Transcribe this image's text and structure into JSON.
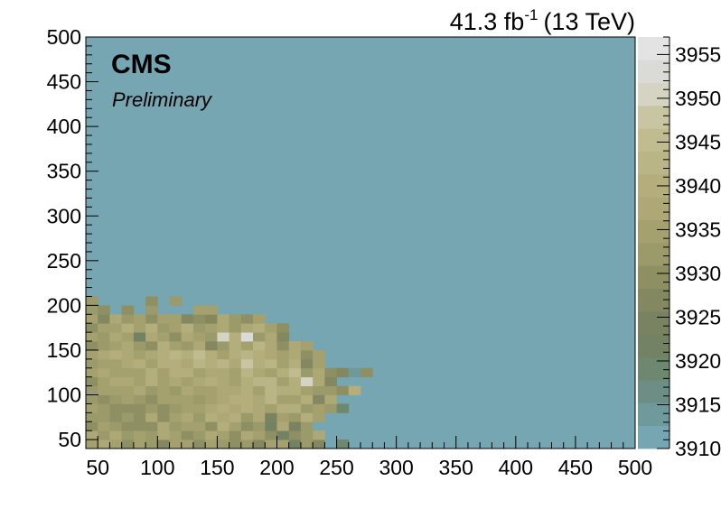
{
  "header": {
    "lumi_value": "41.3 fb",
    "lumi_exponent": "-1",
    "energy": "(13 TeV)"
  },
  "labels": {
    "experiment": "CMS",
    "status": "Preliminary"
  },
  "colors": {
    "background_bin": "#75a6b2",
    "palette": [
      "#75a6b2",
      "#6e9a9c",
      "#6c8e84",
      "#6e876f",
      "#738262",
      "#7a8361",
      "#838860",
      "#8e9064",
      "#9a9a6a",
      "#a5a16f",
      "#ada876",
      "#b4ae7d",
      "#bab586",
      "#c0bc90",
      "#c8c6a2",
      "#d5d4c2",
      "#dadad6",
      "#e3e3e3"
    ]
  },
  "chart_data": {
    "type": "heatmap",
    "title": "",
    "xlabel": "",
    "ylabel": "",
    "xlim": [
      40,
      500
    ],
    "ylim": [
      40,
      500
    ],
    "x_ticks": [
      50,
      100,
      150,
      200,
      250,
      300,
      350,
      400,
      450,
      500
    ],
    "y_ticks": [
      50,
      100,
      150,
      200,
      250,
      300,
      350,
      400,
      450,
      500
    ],
    "bin_width": 10,
    "z_range": [
      3910,
      3957
    ],
    "z_ticks": [
      3910,
      3915,
      3920,
      3925,
      3930,
      3935,
      3940,
      3945,
      3950,
      3955
    ],
    "z_tick_labels": [
      "3910",
      "3915",
      "3920",
      "3925",
      "3930",
      "3935",
      "3940",
      "3945",
      "3950",
      "3955"
    ],
    "empty_bin_value": 3910,
    "rows": [
      {
        "y": 40,
        "x_start": 40,
        "z": [
          3934,
          3938,
          3934,
          3929,
          3935,
          3932,
          3928,
          3936,
          3934,
          3929,
          3936,
          3931,
          3930,
          3932,
          3928,
          3934,
          3936,
          3921,
          3933,
          3928,
          3910,
          3920
        ]
      },
      {
        "y": 50,
        "x_start": 40,
        "z": [
          3937,
          3931,
          3938,
          3932,
          3935,
          3933,
          3937,
          3936,
          3929,
          3933,
          3937,
          3935,
          3930,
          3937,
          3936,
          3929,
          3922,
          3929,
          3933,
          3937
        ]
      },
      {
        "y": 60,
        "x_start": 40,
        "z": [
          3929,
          3934,
          3932,
          3930,
          3929,
          3930,
          3937,
          3931,
          3935,
          3934,
          3930,
          3939,
          3935,
          3929,
          3932,
          3921,
          3937,
          3925,
          3933
        ]
      },
      {
        "y": 70,
        "x_start": 40,
        "z": [
          3932,
          3933,
          3929,
          3932,
          3930,
          3938,
          3929,
          3934,
          3937,
          3932,
          3939,
          3937,
          3939,
          3932,
          3937,
          3925,
          3936,
          3932,
          3939,
          3934
        ]
      },
      {
        "y": 80,
        "x_start": 40,
        "z": [
          3936,
          3933,
          3930,
          3929,
          3930,
          3932,
          3929,
          3932,
          3935,
          3934,
          3938,
          3939,
          3937,
          3940,
          3937,
          3935,
          3941,
          3939,
          3933,
          3936,
          3931,
          3918
        ]
      },
      {
        "y": 90,
        "x_start": 40,
        "z": [
          3931,
          3929,
          3933,
          3935,
          3932,
          3930,
          3935,
          3936,
          3934,
          3933,
          3935,
          3938,
          3941,
          3939,
          3938,
          3942,
          3936,
          3935,
          3940,
          3928,
          3937
        ]
      },
      {
        "y": 100,
        "x_start": 40,
        "z": [
          3933,
          3936,
          3935,
          3934,
          3937,
          3932,
          3934,
          3933,
          3937,
          3936,
          3934,
          3938,
          3937,
          3939,
          3936,
          3942,
          3939,
          3940,
          3936,
          3933,
          3931,
          3929,
          3940
        ]
      },
      {
        "y": 110,
        "x_start": 40,
        "z": [
          3930,
          3934,
          3937,
          3938,
          3935,
          3939,
          3936,
          3937,
          3934,
          3937,
          3941,
          3938,
          3936,
          3940,
          3942,
          3943,
          3935,
          3939,
          3951,
          3938,
          3926
        ]
      },
      {
        "y": 120,
        "x_start": 40,
        "z": [
          3936,
          3937,
          3935,
          3934,
          3934,
          3939,
          3935,
          3940,
          3939,
          3936,
          3937,
          3938,
          3935,
          3942,
          3938,
          3936,
          3940,
          3944,
          3933,
          3937,
          3929,
          3926,
          3915,
          3930
        ]
      },
      {
        "y": 130,
        "x_start": 40,
        "z": [
          3931,
          3936,
          3934,
          3937,
          3939,
          3936,
          3940,
          3939,
          3937,
          3943,
          3939,
          3942,
          3938,
          3947,
          3941,
          3942,
          3935,
          3939,
          3928,
          3934
        ]
      },
      {
        "y": 140,
        "x_start": 40,
        "z": [
          3934,
          3937,
          3940,
          3938,
          3935,
          3937,
          3941,
          3943,
          3939,
          3945,
          3941,
          3936,
          3939,
          3942,
          3940,
          3938,
          3936,
          3937,
          3929,
          3936
        ]
      },
      {
        "y": 150,
        "x_start": 40,
        "z": [
          3929,
          3933,
          3936,
          3938,
          3933,
          3930,
          3939,
          3936,
          3932,
          3938,
          3928,
          3932,
          3940,
          3935,
          3942,
          3938,
          3929,
          3937,
          3935
        ]
      },
      {
        "y": 160,
        "x_start": 40,
        "z": [
          3935,
          3931,
          3937,
          3934,
          3922,
          3937,
          3935,
          3930,
          3938,
          3936,
          3933,
          3951,
          3941,
          3954,
          3933,
          3937,
          3928
        ]
      },
      {
        "y": 170,
        "x_start": 40,
        "z": [
          3929,
          3935,
          3936,
          3939,
          3935,
          3939,
          3933,
          3936,
          3940,
          3931,
          3934,
          3938,
          3932,
          3937,
          3941,
          3935,
          3930
        ]
      },
      {
        "y": 180,
        "x_start": 40,
        "z": [
          3934,
          3928,
          3938,
          3933,
          3936,
          3930,
          3935,
          3934,
          3927,
          3929,
          3928,
          3937,
          3931,
          3929,
          3936
        ]
      },
      {
        "y": 190,
        "x_start": 40,
        "z": [
          3932,
          3929,
          3910,
          3929,
          3910,
          3931,
          3910,
          3910,
          3910,
          3936,
          3935
        ]
      },
      {
        "y": 200,
        "x_start": 40,
        "z": [
          3931,
          3910,
          3910,
          3910,
          3910,
          3930,
          3910,
          3931
        ]
      }
    ]
  }
}
